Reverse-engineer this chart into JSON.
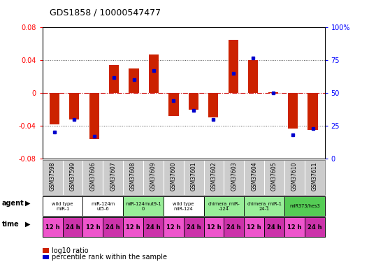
{
  "title": "GDS1858 / 10000547477",
  "samples": [
    "GSM37598",
    "GSM37599",
    "GSM37606",
    "GSM37607",
    "GSM37608",
    "GSM37609",
    "GSM37600",
    "GSM37601",
    "GSM37602",
    "GSM37603",
    "GSM37604",
    "GSM37605",
    "GSM37610",
    "GSM37611"
  ],
  "log10_ratio": [
    -0.038,
    -0.032,
    -0.056,
    0.034,
    0.03,
    0.047,
    -0.028,
    -0.02,
    -0.03,
    0.065,
    0.04,
    0.001,
    -0.043,
    -0.045
  ],
  "percentile_rank": [
    20,
    30,
    17,
    62,
    60,
    67,
    44,
    37,
    30,
    65,
    77,
    50,
    18,
    23
  ],
  "agent_groups": [
    {
      "label": "wild type\nmiR-1",
      "start": 0,
      "end": 2,
      "color": "#ffffff"
    },
    {
      "label": "miR-124m\nut5-6",
      "start": 2,
      "end": 4,
      "color": "#ffffff"
    },
    {
      "label": "miR-124mut9-1\n0",
      "start": 4,
      "end": 6,
      "color": "#99ee99"
    },
    {
      "label": "wild type\nmiR-124",
      "start": 6,
      "end": 8,
      "color": "#ffffff"
    },
    {
      "label": "chimera_miR-\n-124",
      "start": 8,
      "end": 10,
      "color": "#99ee99"
    },
    {
      "label": "chimera_miR-1\n24-1",
      "start": 10,
      "end": 12,
      "color": "#99ee99"
    },
    {
      "label": "miR373/hes3",
      "start": 12,
      "end": 14,
      "color": "#55cc55"
    }
  ],
  "time_labels": [
    "12 h",
    "24 h",
    "12 h",
    "24 h",
    "12 h",
    "24 h",
    "12 h",
    "24 h",
    "12 h",
    "24 h",
    "12 h",
    "24 h",
    "12 h",
    "24 h"
  ],
  "bar_color": "#cc2200",
  "point_color": "#0000cc",
  "bg_color": "#ffffff",
  "ylim": [
    -0.08,
    0.08
  ],
  "y2lim": [
    0,
    100
  ],
  "yticks": [
    -0.08,
    -0.04,
    0,
    0.04,
    0.08
  ],
  "y2ticks": [
    0,
    25,
    50,
    75,
    100
  ],
  "zero_line_color": "#cc0000",
  "dot_line_color": "#555555",
  "time_color_12": "#ee55cc",
  "time_color_24": "#cc33aa",
  "sample_bg": "#cccccc"
}
